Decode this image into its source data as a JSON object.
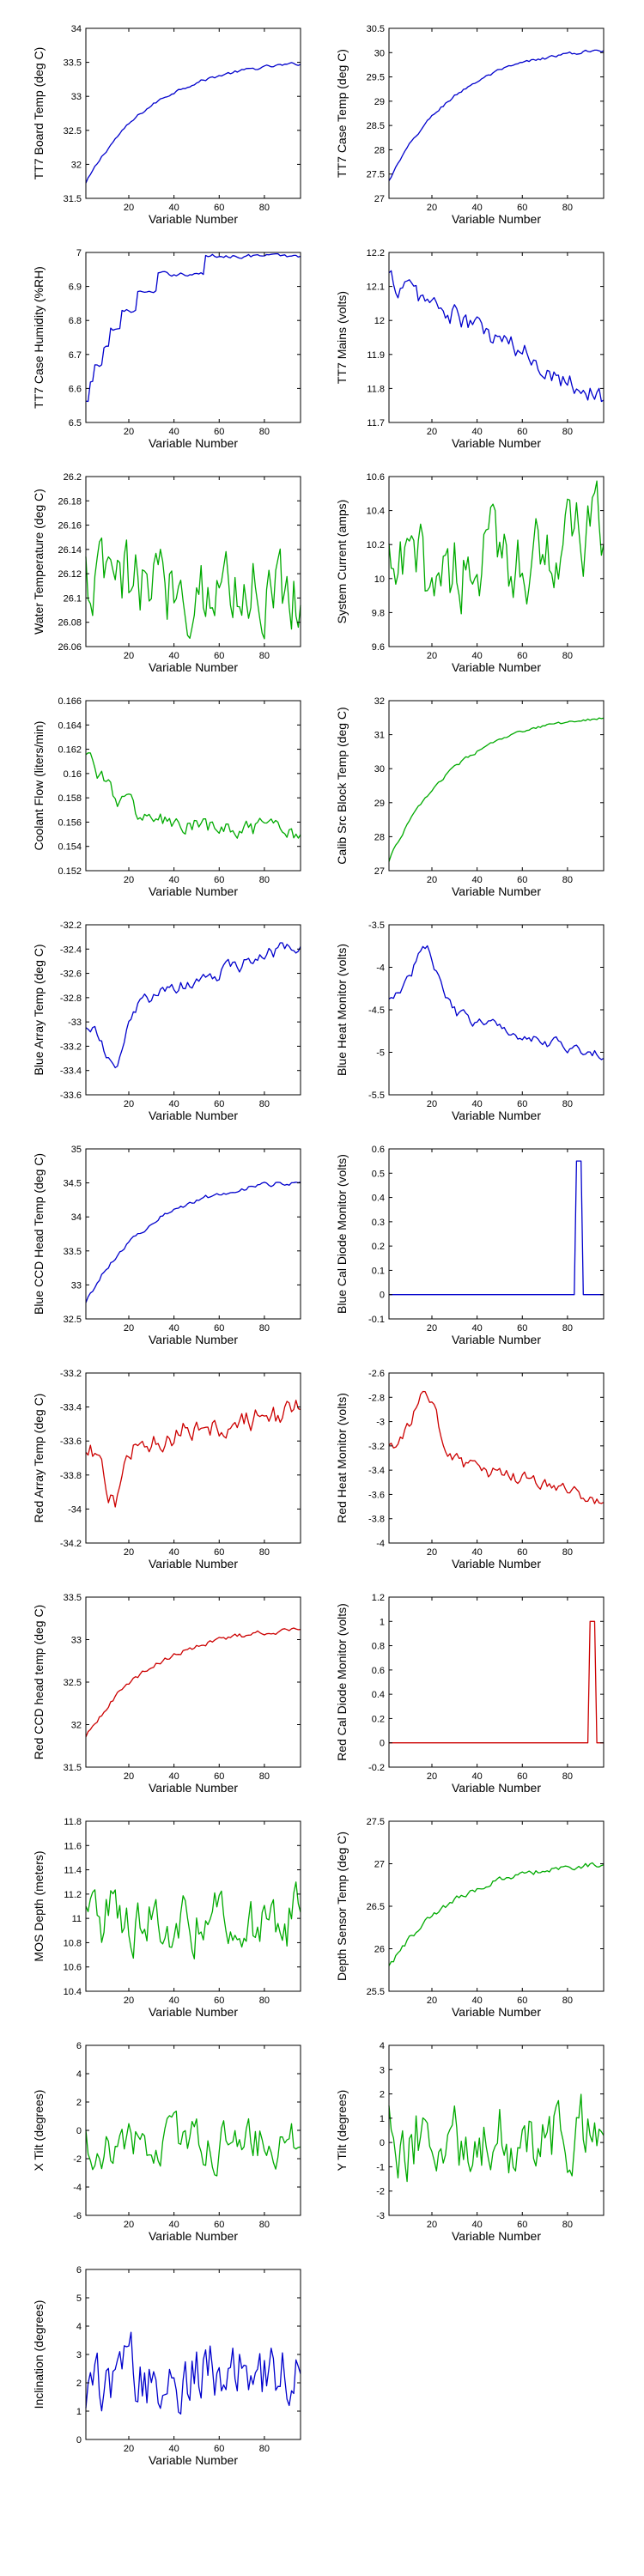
{
  "figure": {
    "background": "#ffffff",
    "x_range_shared": [
      1,
      96
    ],
    "x_ticks_shared": [
      20,
      40,
      60,
      80
    ]
  },
  "chart_data": [
    {
      "type": "line",
      "title": "",
      "xlabel": "Variable Number",
      "ylabel": "TT7 Board Temp (deg C)",
      "color": "#0000cc",
      "xlim": [
        1,
        96
      ],
      "ylim": [
        31.5,
        34
      ],
      "grid": false,
      "x_ticks": [
        20,
        40,
        60,
        80
      ],
      "y_ticks": [
        31.5,
        32,
        32.5,
        33,
        33.5,
        34
      ],
      "y_tick_labels": [
        "31.5",
        "32",
        "32.5",
        "33",
        "33.5",
        "34"
      ],
      "shape": "rise",
      "y_start": 31.72,
      "y_end": 33.48,
      "noise": 0.02
    },
    {
      "type": "line",
      "title": "",
      "xlabel": "Variable Number",
      "ylabel": "TT7 Case Temp (deg C)",
      "color": "#0000cc",
      "xlim": [
        1,
        96
      ],
      "ylim": [
        27,
        30.5
      ],
      "grid": false,
      "x_ticks": [
        20,
        40,
        60,
        80
      ],
      "y_ticks": [
        27,
        27.5,
        28,
        28.5,
        29,
        29.5,
        30,
        30.5
      ],
      "y_tick_labels": [
        "27",
        "27.5",
        "28",
        "28.5",
        "29",
        "29.5",
        "30",
        "30.5"
      ],
      "shape": "rise",
      "y_start": 27.35,
      "y_end": 30.05,
      "noise": 0.03
    },
    {
      "type": "line",
      "title": "",
      "xlabel": "Variable Number",
      "ylabel": "TT7 Case Humidity (%RH)",
      "color": "#0000cc",
      "xlim": [
        1,
        96
      ],
      "ylim": [
        6.5,
        7
      ],
      "grid": false,
      "x_ticks": [
        20,
        40,
        60,
        80
      ],
      "y_ticks": [
        6.5,
        6.6,
        6.7,
        6.8,
        6.9,
        7
      ],
      "y_tick_labels": [
        "6.5",
        "6.6",
        "6.7",
        "6.8",
        "6.9",
        "7"
      ],
      "shape": "steps",
      "y_start": 6.56,
      "y_end": 6.99,
      "noise": 0.005
    },
    {
      "type": "line",
      "title": "",
      "xlabel": "Variable Number",
      "ylabel": "TT7 Mains  (volts)",
      "color": "#0000cc",
      "xlim": [
        1,
        96
      ],
      "ylim": [
        11.7,
        12.2
      ],
      "grid": false,
      "x_ticks": [
        20,
        40,
        60,
        80
      ],
      "y_ticks": [
        11.7,
        11.8,
        11.9,
        12,
        12.1,
        12.2
      ],
      "y_tick_labels": [
        "11.7",
        "11.8",
        "11.9",
        "12",
        "12.1",
        "12.2"
      ],
      "shape": "fall",
      "y_start": 12.12,
      "y_end": 11.77,
      "noise": 0.03
    },
    {
      "type": "line",
      "title": "",
      "xlabel": "Variable Number",
      "ylabel": "Water Temperature (deg C)",
      "color": "#00aa00",
      "xlim": [
        1,
        96
      ],
      "ylim": [
        26.06,
        26.2
      ],
      "grid": false,
      "x_ticks": [
        20,
        40,
        60,
        80
      ],
      "y_ticks": [
        26.06,
        26.08,
        26.1,
        26.12,
        26.14,
        26.16,
        26.18,
        26.2
      ],
      "y_tick_labels": [
        "26.06",
        "26.08",
        "26.1",
        "26.12",
        "26.14",
        "26.16",
        "26.18",
        "26.2"
      ],
      "shape": "noise",
      "y_start": 26.11,
      "y_end": 26.11,
      "noise": 0.03
    },
    {
      "type": "line",
      "title": "",
      "xlabel": "Variable Number",
      "ylabel": "System Current (amps)",
      "color": "#00aa00",
      "xlim": [
        1,
        96
      ],
      "ylim": [
        9.6,
        10.6
      ],
      "grid": false,
      "x_ticks": [
        20,
        40,
        60,
        80
      ],
      "y_ticks": [
        9.6,
        9.8,
        10,
        10.2,
        10.4,
        10.6
      ],
      "y_tick_labels": [
        "9.6",
        "9.8",
        "10",
        "10.2",
        "10.4",
        "10.6"
      ],
      "shape": "noise",
      "y_start": 10.0,
      "y_end": 10.25,
      "noise": 0.22
    },
    {
      "type": "line",
      "title": "",
      "xlabel": "Variable Number",
      "ylabel": "Coolant Flow (liters/min)",
      "color": "#00aa00",
      "xlim": [
        1,
        96
      ],
      "ylim": [
        0.152,
        0.166
      ],
      "grid": false,
      "x_ticks": [
        20,
        40,
        60,
        80
      ],
      "y_ticks": [
        0.152,
        0.154,
        0.156,
        0.158,
        0.16,
        0.162,
        0.164,
        0.166
      ],
      "y_tick_labels": [
        "0.152",
        "0.154",
        "0.156",
        "0.158",
        "0.16",
        "0.162",
        "0.164",
        "0.166"
      ],
      "shape": "decay",
      "y_start": 0.1622,
      "y_end": 0.1552,
      "noise": 0.0007
    },
    {
      "type": "line",
      "title": "",
      "xlabel": "Variable Number",
      "ylabel": "Calib Src Block Temp (deg C)",
      "color": "#00aa00",
      "xlim": [
        1,
        96
      ],
      "ylim": [
        27,
        32
      ],
      "grid": false,
      "x_ticks": [
        20,
        40,
        60,
        80
      ],
      "y_ticks": [
        27,
        28,
        29,
        30,
        31,
        32
      ],
      "y_tick_labels": [
        "27",
        "28",
        "29",
        "30",
        "31",
        "32"
      ],
      "shape": "rise",
      "y_start": 27.3,
      "y_end": 31.5,
      "noise": 0.04
    },
    {
      "type": "line",
      "title": "",
      "xlabel": "Variable Number",
      "ylabel": "Blue Array Temp (deg C)",
      "color": "#0000cc",
      "xlim": [
        1,
        96
      ],
      "ylim": [
        -33.6,
        -32.2
      ],
      "grid": false,
      "x_ticks": [
        20,
        40,
        60,
        80
      ],
      "y_ticks": [
        -33.6,
        -33.4,
        -33.2,
        -33,
        -32.8,
        -32.6,
        -32.4,
        -32.2
      ],
      "y_tick_labels": [
        "-33.6",
        "-33.4",
        "-33.2",
        "-33",
        "-32.8",
        "-32.6",
        "-32.4",
        "-32.2"
      ],
      "shape": "dip",
      "y_start": -33.0,
      "y_end": -32.35,
      "noise": 0.05
    },
    {
      "type": "line",
      "title": "",
      "xlabel": "Variable Number",
      "ylabel": "Blue Heat Monitor (volts)",
      "color": "#0000cc",
      "xlim": [
        1,
        96
      ],
      "ylim": [
        -5.5,
        -3.5
      ],
      "grid": false,
      "x_ticks": [
        20,
        40,
        60,
        80
      ],
      "y_ticks": [
        -5.5,
        -5,
        -4.5,
        -4,
        -3.5
      ],
      "y_tick_labels": [
        "-5.5",
        "-5",
        "-4.5",
        "-4",
        "-3.5"
      ],
      "shape": "hump",
      "y_start": -4.35,
      "y_end": -5.05,
      "noise": 0.06
    },
    {
      "type": "line",
      "title": "",
      "xlabel": "Variable Number",
      "ylabel": "Blue CCD Head Temp (deg C)",
      "color": "#0000cc",
      "xlim": [
        1,
        96
      ],
      "ylim": [
        32.5,
        35
      ],
      "grid": false,
      "x_ticks": [
        20,
        40,
        60,
        80
      ],
      "y_ticks": [
        32.5,
        33,
        33.5,
        34,
        34.5,
        35
      ],
      "y_tick_labels": [
        "32.5",
        "33",
        "33.5",
        "34",
        "34.5",
        "35"
      ],
      "shape": "rise",
      "y_start": 32.75,
      "y_end": 34.52,
      "noise": 0.03
    },
    {
      "type": "line",
      "title": "",
      "xlabel": "Variable Number",
      "ylabel": "Blue Cal Diode Monitor (volts)",
      "color": "#0000cc",
      "xlim": [
        1,
        96
      ],
      "ylim": [
        -0.1,
        0.6
      ],
      "grid": false,
      "x_ticks": [
        20,
        40,
        60,
        80
      ],
      "y_ticks": [
        -0.1,
        0,
        0.1,
        0.2,
        0.3,
        0.4,
        0.5,
        0.6
      ],
      "y_tick_labels": [
        "-0.1",
        "0",
        "0.1",
        "0.2",
        "0.3",
        "0.4",
        "0.5",
        "0.6"
      ],
      "shape": "spike",
      "y_start": 0,
      "y_end": 0,
      "noise": 0,
      "spike_from": 84,
      "spike_to": 86,
      "spike_value": 0.55
    },
    {
      "type": "line",
      "title": "",
      "xlabel": "Variable Number",
      "ylabel": "Red Array Temp (deg C)",
      "color": "#cc0000",
      "xlim": [
        1,
        96
      ],
      "ylim": [
        -34.2,
        -33.2
      ],
      "grid": false,
      "x_ticks": [
        20,
        40,
        60,
        80
      ],
      "y_ticks": [
        -34.2,
        -34,
        -33.8,
        -33.6,
        -33.4,
        -33.2
      ],
      "y_tick_labels": [
        "-34.2",
        "-34",
        "-33.8",
        "-33.6",
        "-33.4",
        "-33.2"
      ],
      "shape": "dip",
      "y_start": -33.65,
      "y_end": -33.42,
      "noise": 0.06
    },
    {
      "type": "line",
      "title": "",
      "xlabel": "Variable Number",
      "ylabel": "Red Heat Monitor (volts)",
      "color": "#cc0000",
      "xlim": [
        1,
        96
      ],
      "ylim": [
        -4,
        -2.6
      ],
      "grid": false,
      "x_ticks": [
        20,
        40,
        60,
        80
      ],
      "y_ticks": [
        -4,
        -3.8,
        -3.6,
        -3.4,
        -3.2,
        -3,
        -2.8,
        -2.6
      ],
      "y_tick_labels": [
        "-4",
        "-3.8",
        "-3.6",
        "-3.4",
        "-3.2",
        "-3",
        "-2.8",
        "-2.6"
      ],
      "shape": "hump",
      "y_start": -3.2,
      "y_end": -3.65,
      "noise": 0.05
    },
    {
      "type": "line",
      "title": "",
      "xlabel": "Variable Number",
      "ylabel": "Red CCD head temp (deg C)",
      "color": "#cc0000",
      "xlim": [
        1,
        96
      ],
      "ylim": [
        31.5,
        33.5
      ],
      "grid": false,
      "x_ticks": [
        20,
        40,
        60,
        80
      ],
      "y_ticks": [
        31.5,
        32,
        32.5,
        33,
        33.5
      ],
      "y_tick_labels": [
        "31.5",
        "32",
        "32.5",
        "33",
        "33.5"
      ],
      "shape": "rise",
      "y_start": 31.85,
      "y_end": 33.12,
      "noise": 0.025
    },
    {
      "type": "line",
      "title": "",
      "xlabel": "Variable Number",
      "ylabel": "Red Cal Diode Monitor (volts)",
      "color": "#cc0000",
      "xlim": [
        1,
        96
      ],
      "ylim": [
        -0.2,
        1.2
      ],
      "grid": false,
      "x_ticks": [
        20,
        40,
        60,
        80
      ],
      "y_ticks": [
        -0.2,
        0,
        0.2,
        0.4,
        0.6,
        0.8,
        1,
        1.2
      ],
      "y_tick_labels": [
        "-0.2",
        "0",
        "0.2",
        "0.4",
        "0.6",
        "0.8",
        "1",
        "1.2"
      ],
      "shape": "spike",
      "y_start": 0,
      "y_end": 0,
      "noise": 0,
      "spike_from": 90,
      "spike_to": 92,
      "spike_value": 1.0
    },
    {
      "type": "line",
      "title": "",
      "xlabel": "Variable Number",
      "ylabel": "MOS Depth  (meters)",
      "color": "#00aa00",
      "xlim": [
        1,
        96
      ],
      "ylim": [
        10.4,
        11.8
      ],
      "grid": false,
      "x_ticks": [
        20,
        40,
        60,
        80
      ],
      "y_ticks": [
        10.4,
        10.6,
        10.8,
        11,
        11.2,
        11.4,
        11.6,
        11.8
      ],
      "y_tick_labels": [
        "10.4",
        "10.6",
        "10.8",
        "11",
        "11.2",
        "11.4",
        "11.6",
        "11.8"
      ],
      "shape": "noise",
      "y_start": 11.0,
      "y_end": 11.0,
      "noise": 0.22
    },
    {
      "type": "line",
      "title": "",
      "xlabel": "Variable Number",
      "ylabel": "Depth Sensor Temp (deg C)",
      "color": "#00aa00",
      "xlim": [
        1,
        96
      ],
      "ylim": [
        25.5,
        27.5
      ],
      "grid": false,
      "x_ticks": [
        20,
        40,
        60,
        80
      ],
      "y_ticks": [
        25.5,
        26,
        26.5,
        27,
        27.5
      ],
      "y_tick_labels": [
        "25.5",
        "26",
        "26.5",
        "27",
        "27.5"
      ],
      "shape": "rise",
      "y_start": 25.78,
      "y_end": 27.0,
      "noise": 0.03
    },
    {
      "type": "line",
      "title": "",
      "xlabel": "Variable Number",
      "ylabel": "X Tilt  (degrees)",
      "color": "#00aa00",
      "xlim": [
        1,
        96
      ],
      "ylim": [
        -6,
        6
      ],
      "grid": false,
      "x_ticks": [
        20,
        40,
        60,
        80
      ],
      "y_ticks": [
        -6,
        -4,
        -2,
        0,
        2,
        4,
        6
      ],
      "y_tick_labels": [
        "-6",
        "-4",
        "-2",
        "0",
        "2",
        "4",
        "6"
      ],
      "shape": "noise",
      "y_start": -1,
      "y_end": -1,
      "noise": 1.4
    },
    {
      "type": "line",
      "title": "",
      "xlabel": "Variable Number",
      "ylabel": "Y Tilt  (degrees)",
      "color": "#00aa00",
      "xlim": [
        1,
        96
      ],
      "ylim": [
        -3,
        4
      ],
      "grid": false,
      "x_ticks": [
        20,
        40,
        60,
        80
      ],
      "y_ticks": [
        -3,
        -2,
        -1,
        0,
        1,
        2,
        3,
        4
      ],
      "y_tick_labels": [
        "-3",
        "-2",
        "-1",
        "0",
        "1",
        "2",
        "3",
        "4"
      ],
      "shape": "noise",
      "y_start": 0.3,
      "y_end": 0.3,
      "noise": 1.4
    },
    {
      "type": "line",
      "title": "",
      "xlabel": "Variable Number",
      "ylabel": "Inclination  (degrees)",
      "color": "#0000cc",
      "xlim": [
        1,
        96
      ],
      "ylim": [
        0,
        6
      ],
      "grid": false,
      "x_ticks": [
        20,
        40,
        60,
        80
      ],
      "y_ticks": [
        0,
        1,
        2,
        3,
        4,
        5,
        6
      ],
      "y_tick_labels": [
        "0",
        "1",
        "2",
        "3",
        "4",
        "5",
        "6"
      ],
      "shape": "noise",
      "y_start": 2.2,
      "y_end": 2.2,
      "noise": 1.1
    }
  ]
}
